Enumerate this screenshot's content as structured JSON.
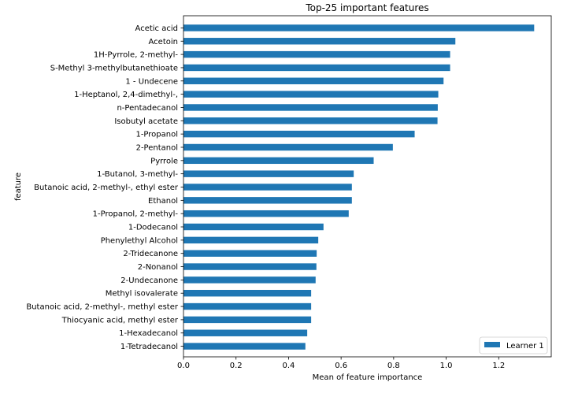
{
  "chart_data": {
    "type": "bar",
    "orientation": "horizontal",
    "title": "Top-25 important features",
    "xlabel": "Mean of feature importance",
    "ylabel": "feature",
    "xlim": [
      0,
      1.4
    ],
    "xticks": [
      "0.0",
      "0.2",
      "0.4",
      "0.6",
      "0.8",
      "1.0",
      "1.2"
    ],
    "grid": false,
    "legend_position": "lower-right",
    "categories": [
      "Acetic acid",
      "Acetoin",
      "1H-Pyrrole, 2-methyl-",
      "S-Methyl 3-methylbutanethioate",
      "1 - Undecene",
      "1-Heptanol, 2,4-dimethyl-,",
      "n-Pentadecanol",
      "Isobutyl acetate",
      "1-Propanol",
      "2-Pentanol",
      "Pyrrole",
      "1-Butanol, 3-methyl-",
      "Butanoic acid, 2-methyl-, ethyl ester",
      "Ethanol",
      "1-Propanol, 2-methyl-",
      "1-Dodecanol",
      "Phenylethyl Alcohol",
      "2-Tridecanone",
      "2-Nonanol",
      "2-Undecanone",
      "Methyl isovalerate",
      "Butanoic acid, 2-methyl-, methyl ester",
      "Thiocyanic acid, methyl ester",
      "1-Hexadecanol",
      "1-Tetradecanol"
    ],
    "series": [
      {
        "name": "Learner 1",
        "color": "#1f77b4",
        "values": [
          1.335,
          1.035,
          1.015,
          1.015,
          0.99,
          0.97,
          0.968,
          0.967,
          0.88,
          0.797,
          0.724,
          0.648,
          0.641,
          0.641,
          0.629,
          0.533,
          0.513,
          0.507,
          0.506,
          0.503,
          0.486,
          0.486,
          0.486,
          0.471,
          0.464
        ]
      }
    ]
  }
}
